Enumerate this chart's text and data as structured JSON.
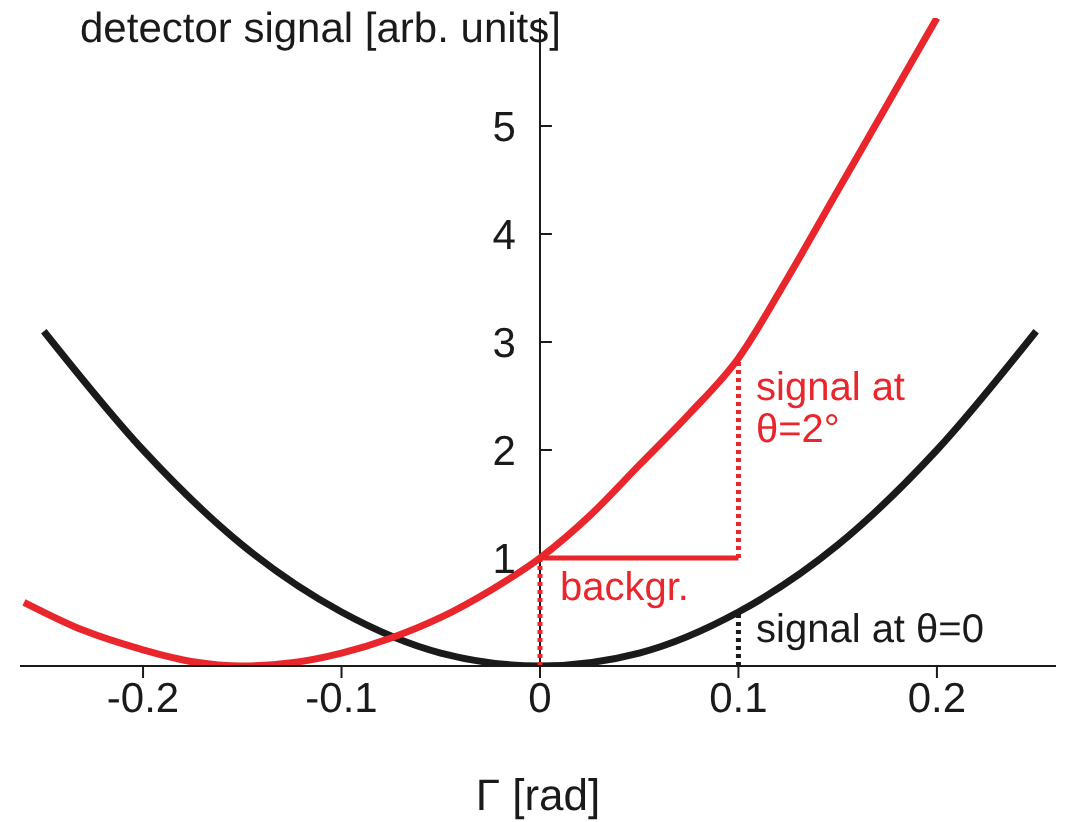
{
  "chart_data": {
    "type": "line",
    "xlabel": "Γ [rad]",
    "ylabel": "detector signal [arb. units]",
    "xlim": [
      -0.262,
      0.26
    ],
    "ylim": [
      0,
      6
    ],
    "xticks": [
      -0.2,
      -0.1,
      0,
      0.1,
      0.2
    ],
    "yticks": [
      1,
      2,
      3,
      4,
      5
    ],
    "grid": false,
    "marker": "none",
    "series": [
      {
        "color": "#1a1a1a",
        "x": [
          -0.25,
          -0.2,
          -0.15,
          -0.1,
          -0.05,
          0,
          0.05,
          0.1,
          0.15,
          0.2,
          0.25
        ],
        "values": [
          3.1,
          2.0,
          1.12,
          0.5,
          0.12,
          0,
          0.12,
          0.5,
          1.12,
          2.0,
          3.1
        ]
      },
      {
        "color": "#e8262b",
        "x": [
          -0.26,
          -0.23,
          -0.2,
          -0.175,
          -0.15,
          -0.125,
          -0.1,
          -0.075,
          -0.05,
          -0.025,
          0,
          0.025,
          0.05,
          0.075,
          0.1,
          0.125,
          0.15,
          0.175,
          0.2
        ],
        "values": [
          0.59,
          0.33,
          0.15,
          0.04,
          0,
          0.03,
          0.12,
          0.26,
          0.45,
          0.7,
          1.0,
          1.39,
          1.86,
          2.33,
          2.85,
          3.6,
          4.4,
          5.2,
          6.0
        ]
      },
      {
        "color": "#e8262b",
        "line_style": "dotted",
        "x": [
          0,
          0
        ],
        "values": [
          0,
          1
        ]
      },
      {
        "color": "#e8262b",
        "line_style": "solid",
        "x": [
          0,
          0.1
        ],
        "values": [
          1,
          1
        ]
      },
      {
        "color": "#e8262b",
        "line_style": "dotted",
        "x": [
          0.1,
          0.1
        ],
        "values": [
          1,
          2.85
        ]
      },
      {
        "color": "#1a1a1a",
        "line_style": "dotted",
        "x": [
          0.1,
          0.1
        ],
        "values": [
          0,
          0.5
        ]
      }
    ],
    "annotations": [
      "signal at θ=2°",
      "backgr.",
      "signal at θ=0"
    ]
  }
}
